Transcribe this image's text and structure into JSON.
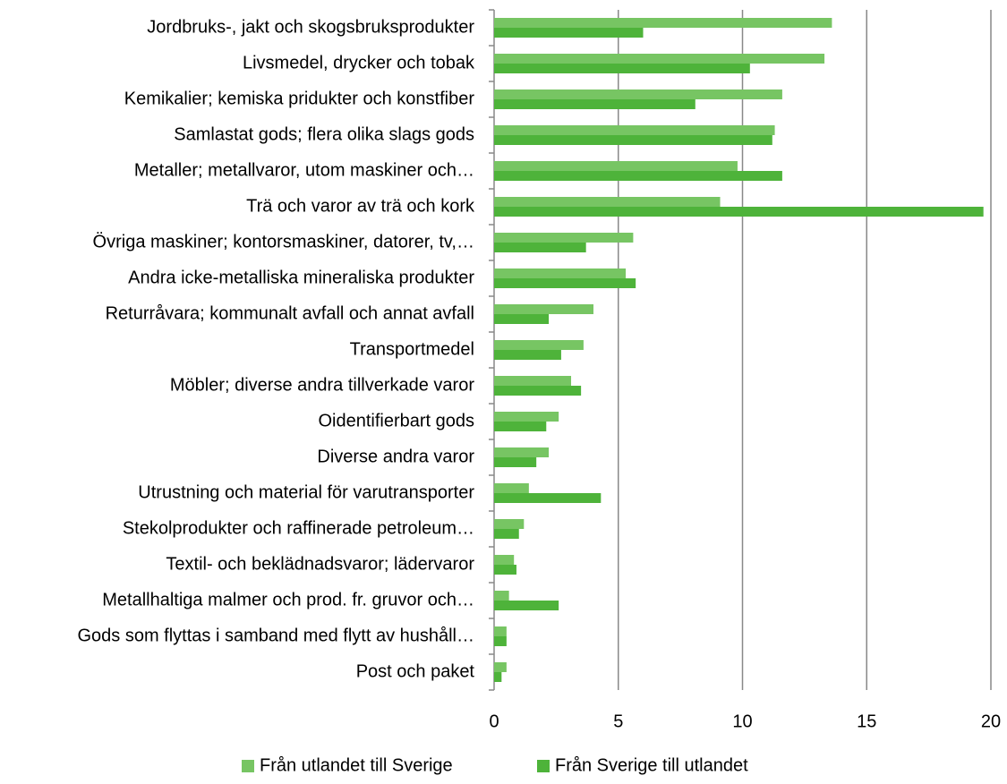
{
  "chart_data": {
    "type": "bar",
    "orientation": "horizontal",
    "categories": [
      "Jordbruks-, jakt och skogsbruksprodukter",
      "Livsmedel, drycker och tobak",
      "Kemikalier; kemiska pridukter och konstfiber",
      "Samlastat gods; flera olika slags gods",
      "Metaller; metallvaror, utom maskiner och…",
      "Trä och varor av trä och kork",
      "Övriga maskiner; kontorsmaskiner, datorer, tv,…",
      "Andra icke-metalliska mineraliska produkter",
      "Returråvara; kommunalt avfall och annat avfall",
      "Transportmedel",
      "Möbler; diverse andra tillverkade varor",
      "Oidentifierbart gods",
      "Diverse andra varor",
      "Utrustning och material för varutransporter",
      "Stekolprodukter och raffinerade petroleum…",
      "Textil- och beklädnadsvaror; lädervaror",
      "Metallhaltiga malmer och prod. fr. gruvor och…",
      "Gods som flyttas i samband med flytt av hushåll…",
      "Post och paket"
    ],
    "series": [
      {
        "name": "Från utlandet till Sverige",
        "color": "#77c563",
        "values": [
          13.6,
          13.3,
          11.6,
          11.3,
          9.8,
          9.1,
          5.6,
          5.3,
          4.0,
          3.6,
          3.1,
          2.6,
          2.2,
          1.4,
          1.2,
          0.8,
          0.6,
          0.5,
          0.5
        ]
      },
      {
        "name": "Från Sverige till utlandet",
        "color": "#4eb33a",
        "values": [
          6.0,
          10.3,
          8.1,
          11.2,
          11.6,
          19.7,
          3.7,
          5.7,
          2.2,
          2.7,
          3.5,
          2.1,
          1.7,
          4.3,
          1.0,
          0.9,
          2.6,
          0.5,
          0.3
        ]
      }
    ],
    "xlim": [
      0,
      20
    ],
    "xticks": [
      0,
      5,
      10,
      15,
      20
    ],
    "grid": true,
    "legend": "bottom"
  }
}
